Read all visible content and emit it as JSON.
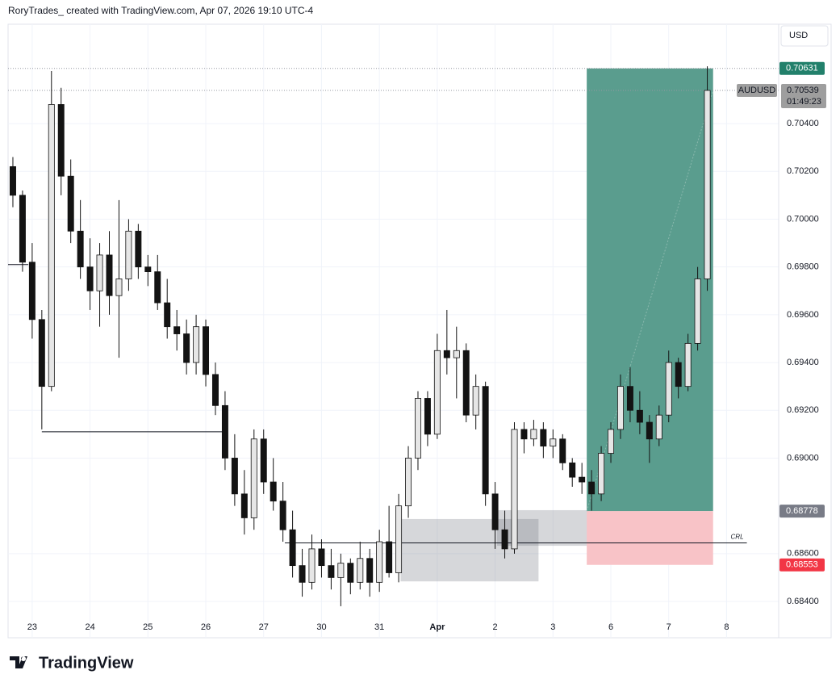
{
  "header": "RoryTrades_ created with TradingView.com, Apr 07, 2026 19:10 UTC-4",
  "logo": "TradingView",
  "chart_data": {
    "type": "candlestick",
    "currency": "USD",
    "symbol": "AUDUSD",
    "last_price": 0.70539,
    "last_price_label": "0.70539",
    "countdown": "01:49:23",
    "up_color": "#e6e6e6",
    "down_color": "#131313",
    "wick_color": "#131313",
    "grid": true,
    "xlim": [
      -0.5,
      79.4
    ],
    "xticks": [
      {
        "value": 2,
        "label": "23"
      },
      {
        "value": 8,
        "label": "24"
      },
      {
        "value": 14,
        "label": "25"
      },
      {
        "value": 20,
        "label": "26"
      },
      {
        "value": 26,
        "label": "27"
      },
      {
        "value": 32,
        "label": "30"
      },
      {
        "value": 38,
        "label": "31"
      },
      {
        "value": 44,
        "label": "Apr"
      },
      {
        "value": 50,
        "label": "2"
      },
      {
        "value": 56,
        "label": "3"
      },
      {
        "value": 62,
        "label": "6"
      },
      {
        "value": 68,
        "label": "7"
      },
      {
        "value": 74,
        "label": "8"
      }
    ],
    "ylim": [
      0.68248,
      0.70816
    ],
    "yticks": [
      {
        "value": 0.684,
        "label": "0.68400"
      },
      {
        "value": 0.686,
        "label": "0.68600"
      },
      {
        "value": 0.69,
        "label": "0.69000"
      },
      {
        "value": 0.692,
        "label": "0.69200"
      },
      {
        "value": 0.694,
        "label": "0.69400"
      },
      {
        "value": 0.696,
        "label": "0.69600"
      },
      {
        "value": 0.698,
        "label": "0.69800"
      },
      {
        "value": 0.7,
        "label": "0.70000"
      },
      {
        "value": 0.702,
        "label": "0.70200"
      },
      {
        "value": 0.704,
        "label": "0.70400"
      }
    ],
    "open": [
      0.7022,
      0.701,
      0.6982,
      0.6958,
      0.693,
      0.7048,
      0.7018,
      0.6995,
      0.698,
      0.697,
      0.6985,
      0.6968,
      0.6975,
      0.6995,
      0.698,
      0.6978,
      0.6965,
      0.6955,
      0.6952,
      0.694,
      0.6955,
      0.6935,
      0.6922,
      0.69,
      0.6885,
      0.6875,
      0.6908,
      0.689,
      0.6882,
      0.687,
      0.6855,
      0.6848,
      0.6862,
      0.6855,
      0.685,
      0.6856,
      0.6848,
      0.6858,
      0.6848,
      0.6865,
      0.6852,
      0.688,
      0.69,
      0.6925,
      0.691,
      0.6945,
      0.6942,
      0.6945,
      0.6918,
      0.693,
      0.6885,
      0.687,
      0.6862,
      0.6912,
      0.6908,
      0.6912,
      0.6905,
      0.6908,
      0.6898,
      0.6892,
      0.689,
      0.6885,
      0.6902,
      0.6912,
      0.693,
      0.692,
      0.6915,
      0.6908,
      0.6918,
      0.694,
      0.693,
      0.6948,
      0.6975
    ],
    "high": [
      0.7026,
      0.7012,
      0.699,
      0.6962,
      0.7062,
      0.7055,
      0.7025,
      0.7008,
      0.6992,
      0.699,
      0.6995,
      0.7008,
      0.7,
      0.6998,
      0.6985,
      0.6985,
      0.6975,
      0.6962,
      0.6958,
      0.696,
      0.6958,
      0.694,
      0.6928,
      0.691,
      0.6895,
      0.6912,
      0.6912,
      0.69,
      0.689,
      0.6878,
      0.6862,
      0.6868,
      0.6866,
      0.6862,
      0.686,
      0.6858,
      0.6865,
      0.6862,
      0.687,
      0.688,
      0.6885,
      0.6905,
      0.6928,
      0.6928,
      0.6952,
      0.6962,
      0.6955,
      0.6948,
      0.6935,
      0.6932,
      0.689,
      0.6878,
      0.6915,
      0.6915,
      0.6916,
      0.6915,
      0.6912,
      0.691,
      0.69,
      0.6898,
      0.6895,
      0.6905,
      0.6915,
      0.6935,
      0.6938,
      0.6928,
      0.6918,
      0.6922,
      0.6945,
      0.6942,
      0.6952,
      0.698,
      0.7064
    ],
    "low": [
      0.7005,
      0.6978,
      0.695,
      0.6912,
      0.6928,
      0.701,
      0.699,
      0.6975,
      0.6962,
      0.6955,
      0.696,
      0.6942,
      0.697,
      0.6975,
      0.6972,
      0.6962,
      0.695,
      0.6945,
      0.6935,
      0.6935,
      0.693,
      0.6918,
      0.6895,
      0.688,
      0.6868,
      0.687,
      0.6885,
      0.6878,
      0.6865,
      0.685,
      0.6842,
      0.6845,
      0.685,
      0.6845,
      0.6838,
      0.6843,
      0.6845,
      0.6842,
      0.6844,
      0.685,
      0.6848,
      0.6875,
      0.6895,
      0.6905,
      0.6908,
      0.6935,
      0.6925,
      0.6915,
      0.6912,
      0.688,
      0.6862,
      0.6858,
      0.686,
      0.6902,
      0.6905,
      0.69,
      0.69,
      0.6895,
      0.6888,
      0.6885,
      0.6878,
      0.6882,
      0.6898,
      0.6908,
      0.6915,
      0.691,
      0.6898,
      0.6905,
      0.6915,
      0.6925,
      0.6928,
      0.6945,
      0.697
    ],
    "close": [
      0.701,
      0.6982,
      0.6958,
      0.693,
      0.7048,
      0.7018,
      0.6995,
      0.698,
      0.697,
      0.6985,
      0.6968,
      0.6975,
      0.6995,
      0.698,
      0.6978,
      0.6965,
      0.6955,
      0.6952,
      0.694,
      0.6955,
      0.6935,
      0.6922,
      0.69,
      0.6885,
      0.6875,
      0.6908,
      0.689,
      0.6882,
      0.687,
      0.6855,
      0.6848,
      0.6862,
      0.6855,
      0.685,
      0.6856,
      0.6848,
      0.6858,
      0.6848,
      0.6865,
      0.6852,
      0.688,
      0.69,
      0.6925,
      0.691,
      0.6945,
      0.6942,
      0.6945,
      0.6918,
      0.693,
      0.6885,
      0.687,
      0.6862,
      0.6912,
      0.6908,
      0.6912,
      0.6905,
      0.6908,
      0.6898,
      0.6892,
      0.689,
      0.6885,
      0.6902,
      0.6912,
      0.693,
      0.692,
      0.6915,
      0.6908,
      0.6918,
      0.694,
      0.693,
      0.6948,
      0.6975,
      0.70539
    ],
    "position": {
      "start": 59.5,
      "end": 72.6,
      "entry": 0.68778,
      "entry_label": "0.68778",
      "target": 0.70631,
      "target_label": "0.70631",
      "stop": 0.68553,
      "stop_label": "0.68553",
      "profit_color": "#5a9d8e",
      "loss_color": "#f8c3c7"
    },
    "zones": [
      {
        "x1": 40.2,
        "x2": 54.5,
        "top": 0.68745,
        "bottom": 0.68484
      },
      {
        "x1": 50.2,
        "x2": 65.0,
        "top": 0.68782,
        "bottom": 0.68633
      }
    ],
    "levels": [
      {
        "x1": 28.2,
        "x2": 76.1,
        "value": 0.68645,
        "label": "CRL"
      },
      {
        "x1": 3.0,
        "x2": 21.7,
        "value": 0.6911
      },
      {
        "x1": -0.5,
        "x2": 1.6,
        "value": 0.6981
      }
    ]
  }
}
